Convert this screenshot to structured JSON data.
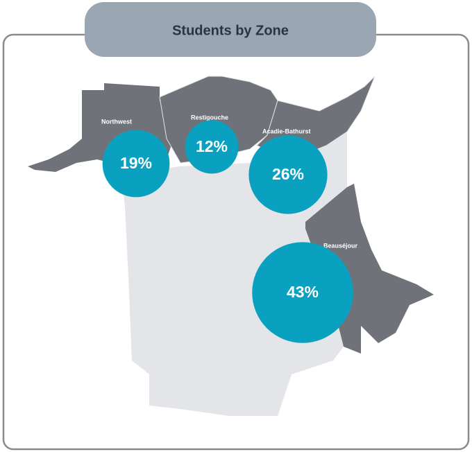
{
  "chart_data": {
    "type": "bubble",
    "title": "Students by Zone",
    "categories": [
      "Northwest",
      "Restigouche",
      "Acadie-Bathurst",
      "Beauséjour"
    ],
    "values": [
      19,
      12,
      26,
      43
    ],
    "value_labels": [
      "19%",
      "12%",
      "26%",
      "43%"
    ],
    "color": "#0aa1c1"
  }
}
